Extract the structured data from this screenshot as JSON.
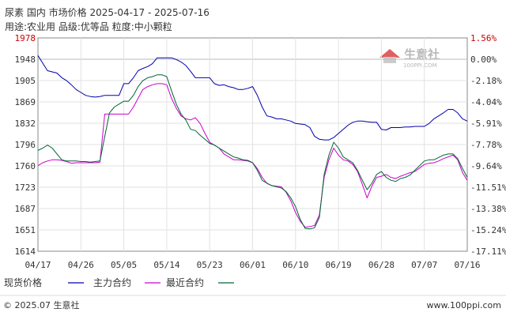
{
  "header": {
    "title_line1": "尿素 国内 市场价格 2025-04-17 - 2025-07-16",
    "title_line2": "用途:农业用 品级:优等品 粒度:中小颗粒"
  },
  "watermark": {
    "brand": "生意社",
    "site": "100PPI.COM"
  },
  "footer": {
    "left": "© 2025.07 生意社",
    "right": "www.100ppi.com"
  },
  "chart_data": {
    "type": "line",
    "x": [
      "04/17",
      "04/18",
      "04/19",
      "04/20",
      "04/21",
      "04/22",
      "04/23",
      "04/24",
      "04/25",
      "04/26",
      "04/27",
      "04/28",
      "04/29",
      "04/30",
      "05/01",
      "05/02",
      "05/03",
      "05/04",
      "05/05",
      "05/06",
      "05/07",
      "05/08",
      "05/09",
      "05/10",
      "05/11",
      "05/12",
      "05/13",
      "05/14",
      "05/15",
      "05/16",
      "05/17",
      "05/18",
      "05/19",
      "05/20",
      "05/21",
      "05/22",
      "05/23",
      "05/24",
      "05/25",
      "05/26",
      "05/27",
      "05/28",
      "05/29",
      "05/30",
      "05/31",
      "06/01",
      "06/02",
      "06/03",
      "06/04",
      "06/05",
      "06/06",
      "06/07",
      "06/08",
      "06/09",
      "06/10",
      "06/11",
      "06/12",
      "06/13",
      "06/14",
      "06/15",
      "06/16",
      "06/17",
      "06/18",
      "06/19",
      "06/20",
      "06/21",
      "06/22",
      "06/23",
      "06/24",
      "06/25",
      "06/26",
      "06/27",
      "06/28",
      "06/29",
      "06/30",
      "07/01",
      "07/02",
      "07/03",
      "07/04",
      "07/05",
      "07/06",
      "07/07",
      "07/08",
      "07/09",
      "07/10",
      "07/11",
      "07/12",
      "07/13",
      "07/14",
      "07/15",
      "07/16"
    ],
    "x_ticks": [
      "04/17",
      "04/26",
      "05/05",
      "05/14",
      "05/23",
      "06/01",
      "06/10",
      "06/19",
      "06/28",
      "07/07",
      "07/16"
    ],
    "series": [
      {
        "name": "现货价格",
        "color": "#0000aa",
        "values": [
          1948,
          1935,
          1922,
          1920,
          1918,
          1910,
          1905,
          1898,
          1890,
          1885,
          1880,
          1878,
          1877,
          1878,
          1880,
          1880,
          1880,
          1880,
          1900,
          1900,
          1910,
          1922,
          1926,
          1929,
          1934,
          1944,
          1944,
          1944,
          1944,
          1941,
          1937,
          1931,
          1921,
          1910,
          1910,
          1910,
          1910,
          1900,
          1897,
          1898,
          1895,
          1893,
          1890,
          1890,
          1892,
          1895,
          1880,
          1860,
          1845,
          1843,
          1840,
          1840,
          1838,
          1836,
          1832,
          1831,
          1830,
          1825,
          1810,
          1805,
          1804,
          1804,
          1808,
          1815,
          1822,
          1829,
          1834,
          1836,
          1836,
          1835,
          1834,
          1834,
          1822,
          1821,
          1825,
          1825,
          1825,
          1826,
          1826,
          1827,
          1827,
          1827,
          1832,
          1840,
          1845,
          1850,
          1856,
          1856,
          1850,
          1840,
          1836
        ]
      },
      {
        "name": "主力合约",
        "color": "#cc00cc",
        "values": [
          1760,
          1765,
          1768,
          1770,
          1770,
          1769,
          1767,
          1764,
          1765,
          1765,
          1765,
          1765,
          1765,
          1766,
          1848,
          1848,
          1848,
          1848,
          1848,
          1848,
          1860,
          1875,
          1890,
          1895,
          1898,
          1900,
          1900,
          1898,
          1875,
          1858,
          1845,
          1840,
          1838,
          1842,
          1832,
          1815,
          1800,
          1795,
          1790,
          1780,
          1775,
          1770,
          1770,
          1769,
          1768,
          1765,
          1755,
          1740,
          1730,
          1726,
          1725,
          1724,
          1715,
          1700,
          1680,
          1665,
          1655,
          1656,
          1658,
          1676,
          1740,
          1770,
          1790,
          1778,
          1770,
          1768,
          1762,
          1750,
          1728,
          1705,
          1725,
          1740,
          1742,
          1745,
          1740,
          1738,
          1742,
          1745,
          1748,
          1750,
          1756,
          1762,
          1764,
          1765,
          1768,
          1772,
          1775,
          1778,
          1770,
          1748,
          1735
        ]
      },
      {
        "name": "最近合约",
        "color": "#006633",
        "values": [
          1786,
          1790,
          1795,
          1790,
          1780,
          1770,
          1768,
          1768,
          1768,
          1767,
          1767,
          1766,
          1767,
          1768,
          1810,
          1850,
          1860,
          1865,
          1870,
          1870,
          1880,
          1895,
          1905,
          1910,
          1912,
          1915,
          1915,
          1912,
          1888,
          1865,
          1848,
          1838,
          1822,
          1820,
          1812,
          1805,
          1798,
          1795,
          1790,
          1785,
          1780,
          1775,
          1773,
          1770,
          1769,
          1765,
          1752,
          1735,
          1730,
          1726,
          1724,
          1722,
          1716,
          1705,
          1690,
          1668,
          1653,
          1652,
          1654,
          1672,
          1745,
          1778,
          1800,
          1790,
          1775,
          1770,
          1765,
          1752,
          1735,
          1719,
          1730,
          1745,
          1750,
          1740,
          1735,
          1733,
          1738,
          1740,
          1744,
          1752,
          1760,
          1768,
          1770,
          1770,
          1774,
          1778,
          1780,
          1780,
          1772,
          1755,
          1740
        ]
      }
    ],
    "ylim": [
      1614,
      1978
    ],
    "y_ticks_left": [
      "1978",
      "1948",
      "1905",
      "1869",
      "1832",
      "1796",
      "1760",
      "1723",
      "1687",
      "1651",
      "1614"
    ],
    "y_ticks_right": [
      "1.56%",
      "0.00%",
      "-2.18%",
      "-4.04%",
      "-5.91%",
      "-7.78%",
      "-9.64%",
      "-11.51%",
      "-13.38%",
      "-15.24%",
      "-17.11%"
    ],
    "legend_placement": "bottom",
    "grid": true
  }
}
